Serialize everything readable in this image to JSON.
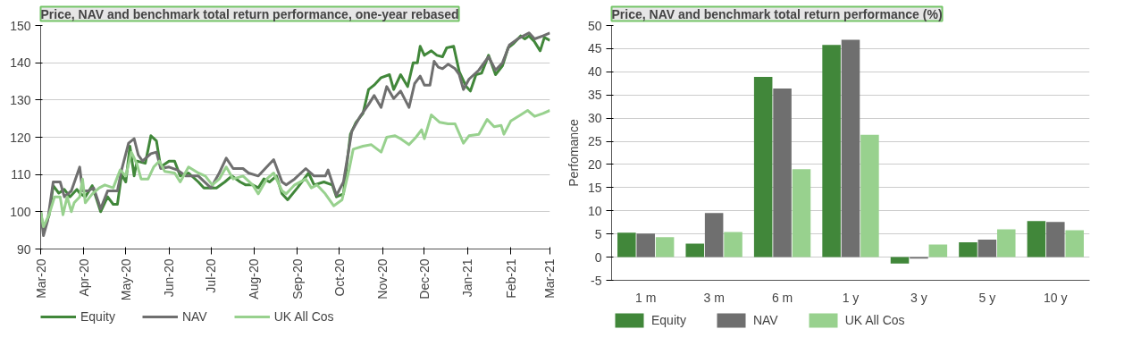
{
  "chart_data": [
    {
      "type": "line",
      "title": "Price, NAV and benchmark total return performance, one-year rebased",
      "xlim": [
        "2020-03-01",
        "2021-03-01"
      ],
      "ylim": [
        90,
        150
      ],
      "yticks": [
        90,
        100,
        110,
        120,
        130,
        140,
        150
      ],
      "xticks": [
        {
          "value": "2020-03-01",
          "label": "Mar-20"
        },
        {
          "value": "2020-04-01",
          "label": "Apr-20"
        },
        {
          "value": "2020-05-01",
          "label": "May-20"
        },
        {
          "value": "2020-06-01",
          "label": "Jun-20"
        },
        {
          "value": "2020-07-01",
          "label": "Jul-20"
        },
        {
          "value": "2020-08-01",
          "label": "Aug-20"
        },
        {
          "value": "2020-09-01",
          "label": "Sep-20"
        },
        {
          "value": "2020-10-01",
          "label": "Oct-20"
        },
        {
          "value": "2020-11-01",
          "label": "Nov-20"
        },
        {
          "value": "2020-12-01",
          "label": "Dec-20"
        },
        {
          "value": "2021-01-01",
          "label": "Jan-21"
        },
        {
          "value": "2021-02-01",
          "label": "Feb-21"
        },
        {
          "value": "2021-03-01",
          "label": "Mar-21"
        }
      ],
      "grid": "y",
      "legend": "bottom",
      "series": [
        {
          "name": "Equity",
          "color": "#41873a",
          "x": [
            "2020-03-01",
            "2020-03-03",
            "2020-03-07",
            "2020-03-10",
            "2020-03-14",
            "2020-03-18",
            "2020-03-22",
            "2020-03-27",
            "2020-03-29",
            "2020-04-02",
            "2020-04-07",
            "2020-04-13",
            "2020-04-18",
            "2020-04-22",
            "2020-04-25",
            "2020-04-28",
            "2020-05-01",
            "2020-05-04",
            "2020-05-07",
            "2020-05-09",
            "2020-05-15",
            "2020-05-19",
            "2020-05-23",
            "2020-05-26",
            "2020-06-01",
            "2020-06-05",
            "2020-06-09",
            "2020-06-15",
            "2020-06-22",
            "2020-06-26",
            "2020-07-01",
            "2020-07-05",
            "2020-07-11",
            "2020-07-16",
            "2020-07-22",
            "2020-07-26",
            "2020-07-31",
            "2020-08-04",
            "2020-08-08",
            "2020-08-12",
            "2020-08-17",
            "2020-08-21",
            "2020-08-25",
            "2020-09-01",
            "2020-09-09",
            "2020-09-13",
            "2020-09-20",
            "2020-09-26",
            "2020-09-29",
            "2020-10-04",
            "2020-10-09",
            "2020-10-13",
            "2020-10-18",
            "2020-10-22",
            "2020-10-26",
            "2020-10-31",
            "2020-11-06",
            "2020-11-09",
            "2020-11-14",
            "2020-11-19",
            "2020-11-23",
            "2020-11-26",
            "2020-11-28",
            "2020-12-01",
            "2020-12-06",
            "2020-12-10",
            "2020-12-14",
            "2020-12-17",
            "2020-12-22",
            "2020-12-26",
            "2020-12-31",
            "2021-01-03",
            "2021-01-07",
            "2021-01-11",
            "2021-01-16",
            "2021-01-21",
            "2021-01-26",
            "2021-01-30",
            "2021-02-03",
            "2021-02-08",
            "2021-02-11",
            "2021-02-14",
            "2021-02-18",
            "2021-02-22",
            "2021-02-25",
            "2021-03-01"
          ],
          "values": [
            100,
            95,
            99,
            107,
            105,
            106,
            104,
            106,
            105,
            104,
            107,
            100,
            104,
            102,
            102,
            110,
            108,
            117.6,
            109.6,
            113.6,
            113,
            120.4,
            119,
            112,
            113.6,
            113.6,
            109.6,
            110.4,
            108,
            106.4,
            106.4,
            106.4,
            108,
            109.6,
            108,
            107.2,
            107.2,
            106.4,
            108.8,
            108,
            109.6,
            104.8,
            103.2,
            106.4,
            110.4,
            107.2,
            108,
            107.2,
            104,
            104.8,
            120.8,
            124,
            126.4,
            132.8,
            134,
            136,
            136.8,
            132.8,
            136.8,
            133.6,
            140,
            140,
            144.4,
            142,
            143.2,
            142,
            141.6,
            144,
            144.4,
            137.6,
            133.6,
            132.4,
            136.8,
            137.2,
            142,
            136.8,
            139.2,
            144,
            145.2,
            147.2,
            146.4,
            147.2,
            145.6,
            143.2,
            146.8,
            146
          ]
        },
        {
          "name": "NAV",
          "color": "#6f6f6f",
          "x": [
            "2020-03-01",
            "2020-03-03",
            "2020-03-06",
            "2020-03-10",
            "2020-03-15",
            "2020-03-18",
            "2020-03-23",
            "2020-03-29",
            "2020-03-31",
            "2020-04-04",
            "2020-04-08",
            "2020-04-13",
            "2020-04-18",
            "2020-04-25",
            "2020-04-28",
            "2020-05-03",
            "2020-05-07",
            "2020-05-10",
            "2020-05-13",
            "2020-05-19",
            "2020-05-23",
            "2020-05-26",
            "2020-06-01",
            "2020-06-07",
            "2020-06-13",
            "2020-06-22",
            "2020-07-01",
            "2020-07-07",
            "2020-07-12",
            "2020-07-17",
            "2020-07-24",
            "2020-07-28",
            "2020-08-04",
            "2020-08-10",
            "2020-08-15",
            "2020-08-21",
            "2020-08-24",
            "2020-08-30",
            "2020-09-07",
            "2020-09-13",
            "2020-09-21",
            "2020-09-23",
            "2020-09-29",
            "2020-10-04",
            "2020-10-10",
            "2020-10-16",
            "2020-10-22",
            "2020-10-26",
            "2020-10-31",
            "2020-11-04",
            "2020-11-09",
            "2020-11-14",
            "2020-11-20",
            "2020-11-24",
            "2020-11-28",
            "2020-12-01",
            "2020-12-05",
            "2020-12-08",
            "2020-12-11",
            "2020-12-14",
            "2020-12-18",
            "2020-12-23",
            "2020-12-26",
            "2020-12-29",
            "2021-01-02",
            "2021-01-09",
            "2021-01-16",
            "2021-01-21",
            "2021-01-26",
            "2021-01-31",
            "2021-02-06",
            "2021-02-10",
            "2021-02-14",
            "2021-02-18",
            "2021-02-24",
            "2021-03-01"
          ],
          "values": [
            100,
            93.6,
            97.6,
            108,
            108,
            104,
            105.6,
            112,
            105.6,
            105.6,
            106.4,
            100.8,
            105.6,
            105.6,
            111.2,
            118.4,
            119.6,
            115.2,
            113.6,
            115.6,
            116,
            111.6,
            112,
            111.2,
            109.6,
            109.6,
            106.4,
            110.4,
            114.4,
            111.6,
            111.6,
            110.4,
            109.6,
            112,
            114,
            108,
            107.2,
            108.8,
            111.6,
            109.6,
            109.6,
            111.2,
            104.4,
            108,
            121.6,
            125.6,
            128.8,
            131.2,
            128,
            133.6,
            130.4,
            132.4,
            128,
            134.4,
            136.4,
            134,
            134,
            140.4,
            138.8,
            138.4,
            139.6,
            138.4,
            136.8,
            132.8,
            135.6,
            138,
            141.6,
            138,
            140,
            144.8,
            146.4,
            147.2,
            148,
            146.4,
            147.2,
            148
          ]
        },
        {
          "name": "UK All Cos",
          "color": "#98d18e",
          "x": [
            "2020-03-01",
            "2020-03-03",
            "2020-03-07",
            "2020-03-11",
            "2020-03-15",
            "2020-03-17",
            "2020-03-20",
            "2020-03-23",
            "2020-03-25",
            "2020-03-29",
            "2020-03-31",
            "2020-04-02",
            "2020-04-07",
            "2020-04-12",
            "2020-04-16",
            "2020-04-22",
            "2020-04-27",
            "2020-05-01",
            "2020-05-05",
            "2020-05-09",
            "2020-05-12",
            "2020-05-17",
            "2020-05-21",
            "2020-05-25",
            "2020-05-29",
            "2020-06-05",
            "2020-06-09",
            "2020-06-15",
            "2020-06-22",
            "2020-06-27",
            "2020-07-02",
            "2020-07-07",
            "2020-07-12",
            "2020-07-17",
            "2020-07-24",
            "2020-07-31",
            "2020-08-04",
            "2020-08-10",
            "2020-08-15",
            "2020-08-21",
            "2020-08-24",
            "2020-08-30",
            "2020-09-07",
            "2020-09-11",
            "2020-09-15",
            "2020-09-21",
            "2020-09-27",
            "2020-10-03",
            "2020-10-08",
            "2020-10-11",
            "2020-10-18",
            "2020-10-24",
            "2020-10-31",
            "2020-11-04",
            "2020-11-10",
            "2020-11-14",
            "2020-11-20",
            "2020-11-25",
            "2020-11-29",
            "2020-12-01",
            "2020-12-06",
            "2020-12-12",
            "2020-12-18",
            "2020-12-23",
            "2020-12-29",
            "2021-01-02",
            "2021-01-09",
            "2021-01-15",
            "2021-01-20",
            "2021-01-25",
            "2021-01-27",
            "2021-02-01",
            "2021-02-08",
            "2021-02-13",
            "2021-02-18",
            "2021-02-24",
            "2021-03-01"
          ],
          "values": [
            100,
            96,
            99.2,
            104,
            104,
            99.2,
            104,
            100,
            102.4,
            104,
            108.8,
            102.4,
            104.8,
            106.4,
            107.2,
            106.4,
            111.2,
            109.6,
            116,
            112.8,
            108.8,
            108.8,
            112,
            113.6,
            110.8,
            110.4,
            108,
            112,
            110.4,
            109.6,
            107.2,
            108.8,
            112,
            108.8,
            109.6,
            107.2,
            104.8,
            108.8,
            110.4,
            105.6,
            104.8,
            107.2,
            108.8,
            106.4,
            107.2,
            104.8,
            101.6,
            103.2,
            111.2,
            116.8,
            117.6,
            118,
            116,
            120,
            120.4,
            119.6,
            118,
            120,
            122,
            119.6,
            126,
            124,
            123.6,
            123.6,
            118.4,
            120.4,
            120.8,
            124.8,
            122.8,
            123.2,
            120.8,
            124.4,
            126,
            127.2,
            125.6,
            126.4,
            127.2
          ]
        }
      ]
    },
    {
      "type": "bar",
      "title": "Price, NAV and benchmark total return performance (%)",
      "ylabel": "Perfomance",
      "categories": [
        "1 m",
        "3 m",
        "6 m",
        "1 y",
        "3 y",
        "5 y",
        "10 y"
      ],
      "ylim": [
        -5,
        50
      ],
      "yticks": [
        -5,
        0,
        5,
        10,
        15,
        20,
        25,
        30,
        35,
        40,
        45,
        50
      ],
      "grid": "y",
      "legend": "bottom",
      "series": [
        {
          "name": "Equity",
          "color": "#41873a",
          "values": [
            5.3,
            2.9,
            38.9,
            45.8,
            -1.4,
            3.2,
            7.8
          ]
        },
        {
          "name": "NAV",
          "color": "#6f6f6f",
          "values": [
            5.1,
            9.5,
            36.4,
            46.9,
            -0.3,
            3.8,
            7.6
          ]
        },
        {
          "name": "UK All Cos",
          "color": "#98d18e",
          "values": [
            4.3,
            5.4,
            19.0,
            26.4,
            2.7,
            6.0,
            5.8
          ]
        }
      ]
    }
  ]
}
